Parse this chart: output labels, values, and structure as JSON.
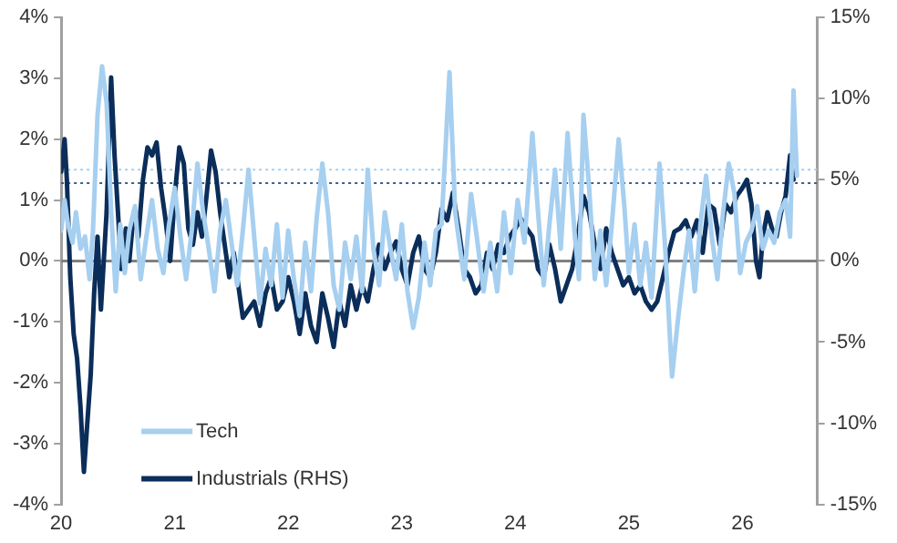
{
  "chart_data": {
    "type": "line",
    "xlim": [
      2020,
      2026.66
    ],
    "xticks": [
      {
        "value": 2020,
        "label": "20"
      },
      {
        "value": 2021,
        "label": "21"
      },
      {
        "value": 2022,
        "label": "22"
      },
      {
        "value": 2023,
        "label": "23"
      },
      {
        "value": 2024,
        "label": "24"
      },
      {
        "value": 2025,
        "label": "25"
      },
      {
        "value": 2026,
        "label": "26"
      }
    ],
    "ylim": [
      -4,
      4
    ],
    "yticks": [
      {
        "value": -4,
        "label": "-4%"
      },
      {
        "value": -3,
        "label": "-3%"
      },
      {
        "value": -2,
        "label": "-2%"
      },
      {
        "value": -1,
        "label": "-1%"
      },
      {
        "value": 0,
        "label": "0%"
      },
      {
        "value": 1,
        "label": "1%"
      },
      {
        "value": 2,
        "label": "2%"
      },
      {
        "value": 3,
        "label": "3%"
      },
      {
        "value": 4,
        "label": "4%"
      }
    ],
    "y2lim": [
      -15,
      15
    ],
    "y2ticks": [
      {
        "value": -15,
        "label": "-15%"
      },
      {
        "value": -10,
        "label": "-10%"
      },
      {
        "value": -5,
        "label": "-5%"
      },
      {
        "value": 0,
        "label": "0%"
      },
      {
        "value": 5,
        "label": "5%"
      },
      {
        "value": 10,
        "label": "10%"
      },
      {
        "value": 15,
        "label": "15%"
      }
    ],
    "grid": false,
    "legend": "bottom left",
    "ref_lines": [
      {
        "axis": "y",
        "value": 0,
        "color": "#808080",
        "line_style": "solid"
      },
      {
        "axis": "y",
        "value": 1.5,
        "color": "#a6cff0",
        "line_style": "dotted"
      },
      {
        "axis": "y2",
        "value": 4.8,
        "color": "#3a5f8f",
        "line_style": "dotted"
      }
    ],
    "series": [
      {
        "name": "Tech",
        "color": "#a6cff0",
        "x": [
          2020.0,
          2020.03,
          2020.06,
          2020.1,
          2020.13,
          2020.17,
          2020.21,
          2020.25,
          2020.28,
          2020.32,
          2020.36,
          2020.4,
          2020.44,
          2020.48,
          2020.52,
          2020.56,
          2020.6,
          2020.65,
          2020.7,
          2020.75,
          2020.8,
          2020.85,
          2020.9,
          2020.95,
          2021.0,
          2021.05,
          2021.1,
          2021.15,
          2021.2,
          2021.25,
          2021.3,
          2021.35,
          2021.4,
          2021.45,
          2021.5,
          2021.55,
          2021.6,
          2021.65,
          2021.7,
          2021.75,
          2021.8,
          2021.85,
          2021.9,
          2021.95,
          2022.0,
          2022.05,
          2022.1,
          2022.15,
          2022.2,
          2022.25,
          2022.3,
          2022.35,
          2022.4,
          2022.45,
          2022.5,
          2022.55,
          2022.6,
          2022.65,
          2022.7,
          2022.75,
          2022.8,
          2022.85,
          2022.9,
          2022.95,
          2023.0,
          2023.05,
          2023.1,
          2023.15,
          2023.2,
          2023.25,
          2023.3,
          2023.35,
          2023.42,
          2023.47,
          2023.55,
          2023.61,
          2023.66,
          2023.72,
          2023.78,
          2023.84,
          2023.9,
          2023.96,
          2024.02,
          2024.08,
          2024.15,
          2024.2,
          2024.25,
          2024.3,
          2024.35,
          2024.4,
          2024.46,
          2024.52,
          2024.56,
          2024.6,
          2024.65,
          2024.7,
          2024.75,
          2024.8,
          2024.85,
          2024.91,
          2024.96,
          2025.0,
          2025.05,
          2025.1,
          2025.15,
          2025.2,
          2025.27,
          2025.32,
          2025.38,
          2025.43,
          2025.48,
          2025.53,
          2025.58,
          2025.63,
          2025.68,
          2025.73,
          2025.78,
          2025.83,
          2025.88,
          2025.93,
          2025.98,
          2026.03,
          2026.08,
          2026.13,
          2026.18,
          2026.23,
          2026.28,
          2026.33,
          2026.38,
          2026.42,
          2026.45,
          2026.48
        ],
        "values": [
          0.5,
          1.0,
          0.6,
          0.3,
          0.8,
          0.2,
          0.4,
          -0.3,
          0.5,
          2.4,
          3.2,
          2.6,
          0.8,
          -0.5,
          0.6,
          -0.2,
          0.5,
          0.9,
          -0.3,
          0.4,
          1.0,
          0.2,
          -0.2,
          0.6,
          1.2,
          0.4,
          -0.3,
          0.5,
          1.6,
          0.8,
          0.2,
          -0.5,
          0.5,
          1.0,
          0.3,
          -0.4,
          0.5,
          1.5,
          0.4,
          -0.7,
          0.2,
          -0.4,
          0.6,
          -0.6,
          0.5,
          -0.3,
          -0.9,
          0.3,
          -0.5,
          0.7,
          1.6,
          0.8,
          -0.4,
          -0.8,
          0.3,
          -0.3,
          0.4,
          -0.5,
          1.5,
          0.2,
          -0.4,
          0.8,
          0.2,
          -0.3,
          0.6,
          -0.5,
          -1.1,
          -0.6,
          0.3,
          -0.4,
          0.5,
          0.6,
          3.1,
          0.8,
          -0.3,
          1.1,
          0.4,
          -0.5,
          0.3,
          -0.5,
          0.8,
          -0.2,
          1.0,
          0.3,
          2.1,
          0.8,
          -0.4,
          0.6,
          1.5,
          0.2,
          2.1,
          0.5,
          -0.3,
          2.4,
          1.2,
          -0.3,
          0.5,
          -0.4,
          0.6,
          2.0,
          0.9,
          -0.2,
          0.6,
          -0.4,
          0.3,
          -0.6,
          1.6,
          0.2,
          -1.9,
          -1.0,
          -0.2,
          0.5,
          -0.5,
          0.6,
          1.4,
          0.4,
          -0.3,
          0.8,
          1.6,
          1.1,
          -0.2,
          0.3,
          0.5,
          0.9,
          0.2,
          0.5,
          0.3,
          0.8,
          1.0,
          0.4,
          2.8,
          1.4
        ]
      },
      {
        "name": "Industrials (RHS)",
        "color": "#0b2d59",
        "axis": "y2",
        "x": [
          2020.0,
          2020.03,
          2020.05,
          2020.08,
          2020.11,
          2020.14,
          2020.17,
          2020.2,
          2020.23,
          2020.26,
          2020.29,
          2020.32,
          2020.35,
          2020.4,
          2020.44,
          2020.47,
          2020.5,
          2020.53,
          2020.57,
          2020.6,
          2020.64,
          2020.68,
          2020.72,
          2020.76,
          2020.8,
          2020.84,
          2020.88,
          2020.92,
          2020.96,
          2021.0,
          2021.04,
          2021.08,
          2021.12,
          2021.16,
          2021.2,
          2021.24,
          2021.28,
          2021.32,
          2021.36,
          2021.4,
          2021.44,
          2021.48,
          2021.52,
          2021.56,
          2021.6,
          2021.65,
          2021.7,
          2021.75,
          2021.8,
          2021.85,
          2021.9,
          2021.95,
          2022.0,
          2022.05,
          2022.1,
          2022.15,
          2022.2,
          2022.25,
          2022.3,
          2022.35,
          2022.4,
          2022.45,
          2022.5,
          2022.55,
          2022.6,
          2022.65,
          2022.7,
          2022.75,
          2022.8,
          2022.85,
          2022.9,
          2022.95,
          2023.0,
          2023.05,
          2023.1,
          2023.15,
          2023.2,
          2023.25,
          2023.3,
          2023.35,
          2023.4,
          2023.45,
          2023.5,
          2023.55,
          2023.6,
          2023.65,
          2023.7,
          2023.75,
          2023.8,
          2023.85,
          2023.9,
          2023.95,
          2024.0,
          2024.05,
          2024.1,
          2024.15,
          2024.2,
          2024.25,
          2024.3,
          2024.35,
          2024.4,
          2024.45,
          2024.5,
          2024.55,
          2024.6,
          2024.65,
          2024.7,
          2024.75,
          2024.8,
          2024.85,
          2024.9,
          2024.95,
          2025.0,
          2025.05,
          2025.1,
          2025.15,
          2025.2,
          2025.25,
          2025.3,
          2025.35,
          2025.4,
          2025.45,
          2025.5,
          2025.55,
          2025.6,
          2025.65,
          2025.7,
          2025.75,
          2025.8,
          2025.85,
          2025.9,
          2025.95,
          2026.0,
          2026.04,
          2026.08,
          2026.12,
          2026.15,
          2026.18,
          2026.22,
          2026.26,
          2026.3,
          2026.34,
          2026.38,
          2026.42,
          2026.45
        ],
        "values": [
          5.5,
          7.5,
          5.0,
          -1.0,
          -4.5,
          -6.0,
          -9.0,
          -13.0,
          -10.0,
          -7.0,
          -2.0,
          1.5,
          -3.0,
          3.0,
          11.3,
          6.5,
          3.0,
          -0.5,
          2.0,
          0.0,
          3.0,
          1.5,
          5.0,
          7.0,
          6.5,
          7.3,
          4.5,
          2.5,
          0.0,
          4.0,
          7.0,
          6.0,
          2.0,
          1.0,
          3.0,
          1.5,
          4.0,
          6.8,
          5.5,
          3.0,
          1.0,
          -1.0,
          0.5,
          -1.5,
          -3.5,
          -3.0,
          -2.5,
          -4.0,
          -2.0,
          -1.0,
          -3.0,
          -2.5,
          -1.0,
          -2.5,
          -4.5,
          -2.0,
          -4.0,
          -5.0,
          -2.0,
          -3.5,
          -5.3,
          -2.5,
          -4.0,
          -1.5,
          -3.0,
          -1.5,
          -2.5,
          -0.5,
          1.0,
          -0.5,
          0.5,
          1.2,
          -0.5,
          -1.5,
          0.5,
          1.5,
          -0.5,
          -1.0,
          0.5,
          3.2,
          2.5,
          4.2,
          2.0,
          -0.5,
          -1.0,
          -2.0,
          -1.5,
          0.5,
          -0.5,
          1.0,
          0.5,
          1.5,
          2.0,
          2.6,
          2.0,
          1.5,
          -0.5,
          -1.0,
          1.0,
          -0.5,
          -2.5,
          -1.5,
          -0.5,
          1.5,
          4.0,
          3.0,
          1.0,
          -0.5,
          2.0,
          0.5,
          -0.5,
          -1.5,
          -1.0,
          -2.0,
          -1.5,
          -2.5,
          -3.0,
          -2.5,
          -1.0,
          0.5,
          1.8,
          2.0,
          2.5,
          1.5,
          2.5,
          0.5,
          3.5,
          3.2,
          1.0,
          3.5,
          3.0,
          4.0,
          4.5,
          5.0,
          3.5,
          0.0,
          -1.0,
          1.5,
          3.0,
          2.0,
          1.5,
          3.0,
          4.0,
          6.5,
          5.0
        ]
      }
    ]
  }
}
